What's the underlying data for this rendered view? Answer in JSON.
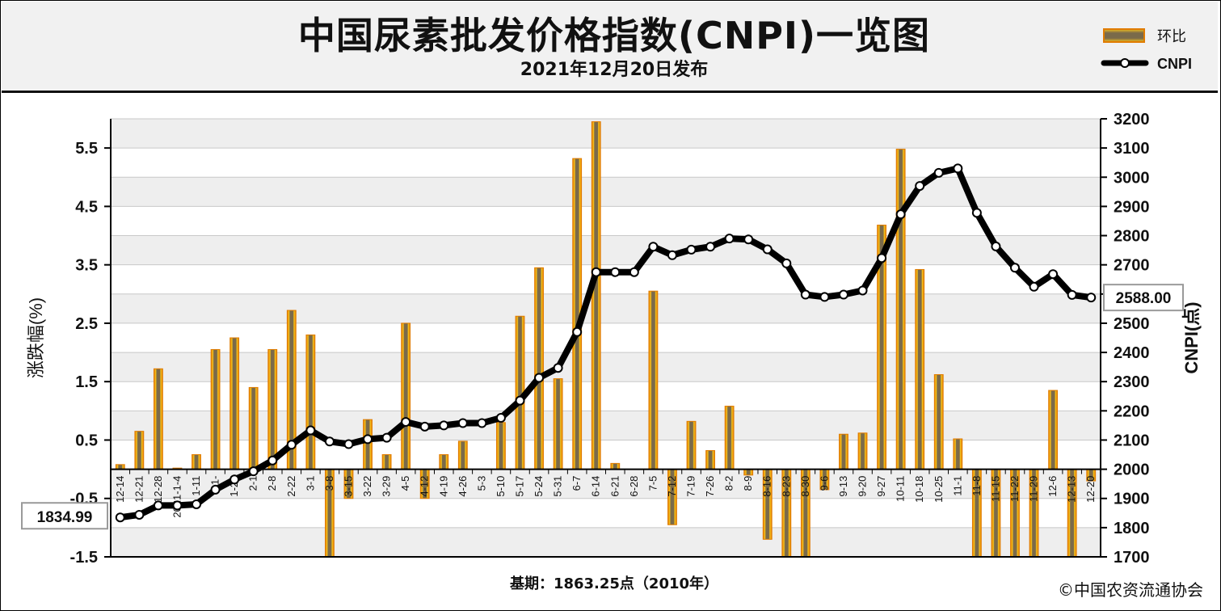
{
  "header": {
    "title": "中国尿素批发价格指数(CNPI)一览图",
    "subtitle": "2021年12月20日发布"
  },
  "legend": {
    "bar_label": "环比",
    "line_label": "CNPI"
  },
  "footer": {
    "basis": "基期：1863.25点（2010年）",
    "copyright": "©中国农资流通协会"
  },
  "colors": {
    "bar_gold": "#f2b705",
    "bar_orange": "#e07b00",
    "bar_core": "#7a6a4a",
    "line": "#000000",
    "band": "#eeeeee"
  },
  "chart_data": {
    "type": "bar+line",
    "ylabel": "涨跌幅(%)",
    "y2label": "CNPI(点)",
    "ylim": [
      -1.5,
      6.0
    ],
    "y_ticks": [
      "5.5",
      "4.5",
      "3.5",
      "2.5",
      "1.5",
      "0.5",
      "-0.5",
      "-1.5"
    ],
    "y_tick_values": [
      5.5,
      4.5,
      3.5,
      2.5,
      1.5,
      0.5,
      -0.5,
      -1.5
    ],
    "y2lim": [
      1700,
      3200
    ],
    "y2_ticks": [
      "3200",
      "3100",
      "3000",
      "2900",
      "2800",
      "2700",
      "2600",
      "2500",
      "2400",
      "2300",
      "2200",
      "2100",
      "2000",
      "1900",
      "1800",
      "1700"
    ],
    "y2_tick_values": [
      3200,
      3100,
      3000,
      2900,
      2800,
      2700,
      2600,
      2500,
      2400,
      2300,
      2200,
      2100,
      2000,
      1900,
      1800,
      1700
    ],
    "categories": [
      "12-14",
      "12-21",
      "12-28",
      "2021-1-4",
      "1-11",
      "1-18",
      "1-25",
      "2-1",
      "2-8",
      "2-22",
      "3-1",
      "3-8",
      "3-15",
      "3-22",
      "3-29",
      "4-5",
      "4-12",
      "4-19",
      "4-26",
      "5-3",
      "5-10",
      "5-17",
      "5-24",
      "5-31",
      "6-7",
      "6-14",
      "6-21",
      "6-28",
      "7-5",
      "7-12",
      "7-19",
      "7-26",
      "8-2",
      "8-9",
      "8-16",
      "8-23",
      "8-30",
      "9-6",
      "9-13",
      "9-20",
      "9-27",
      "10-11",
      "10-18",
      "10-25",
      "11-1",
      "11-8",
      "11-15",
      "11-22",
      "11-29",
      "12-6",
      "12-13",
      "12-20"
    ],
    "tick_labels": [
      "12-14",
      "12-21",
      "12-28",
      "2021-1-4",
      "1-11",
      "1-",
      "1-25",
      "2-1",
      "2-8",
      "2-22",
      "3-1",
      "3-8",
      "3-15",
      "3-22",
      "3-29",
      "4-5",
      "4-12",
      "4-19",
      "4-26",
      "5-3",
      "5-10",
      "5-17",
      "5-24",
      "5-31",
      "6-7",
      "6-14",
      "6-21",
      "6-28",
      "7-5",
      "7-12",
      "7-19",
      "7-26",
      "8-2",
      "8-9",
      "8-16",
      "8-23",
      "8-30",
      "9-6",
      "9-13",
      "9-20",
      "9-27",
      "10-11",
      "10-18",
      "10-25",
      "11-1",
      "11-8",
      "11-15",
      "11-22",
      "11-29",
      "12-6",
      "12-13",
      "12-20"
    ],
    "series": [
      {
        "name": "环比",
        "type": "bar",
        "values": [
          0.08,
          0.65,
          1.72,
          0.02,
          0.25,
          2.05,
          2.25,
          1.4,
          2.05,
          2.72,
          2.3,
          -1.5,
          -0.5,
          0.85,
          0.25,
          2.5,
          -0.5,
          0.25,
          0.48,
          0.0,
          0.8,
          2.62,
          3.45,
          1.55,
          5.32,
          5.95,
          0.1,
          0.0,
          3.05,
          -0.95,
          0.82,
          0.32,
          1.08,
          -0.1,
          -1.2,
          -1.5,
          -1.5,
          -0.35,
          0.6,
          0.62,
          4.18,
          5.48,
          3.42,
          1.62,
          0.52,
          -1.5,
          -1.5,
          -1.5,
          -1.5,
          1.35,
          -1.5,
          -0.2
        ]
      },
      {
        "name": "CNPI",
        "type": "line",
        "values": [
          1835,
          1844,
          1876,
          1876,
          1880,
          1930,
          1965,
          1993,
          2030,
          2084,
          2133,
          2095,
          2086,
          2103,
          2108,
          2162,
          2146,
          2150,
          2158,
          2158,
          2176,
          2235,
          2313,
          2347,
          2470,
          2675,
          2675,
          2675,
          2762,
          2733,
          2752,
          2762,
          2790,
          2787,
          2753,
          2705,
          2598,
          2590,
          2598,
          2612,
          2723,
          2873,
          2970,
          3015,
          3030,
          2878,
          2763,
          2690,
          2625,
          2668,
          2597,
          2588
        ]
      }
    ],
    "annotations": {
      "start_value": "1834.99",
      "end_value": "2588.00"
    },
    "grid": true,
    "legend_position": "top-right"
  }
}
